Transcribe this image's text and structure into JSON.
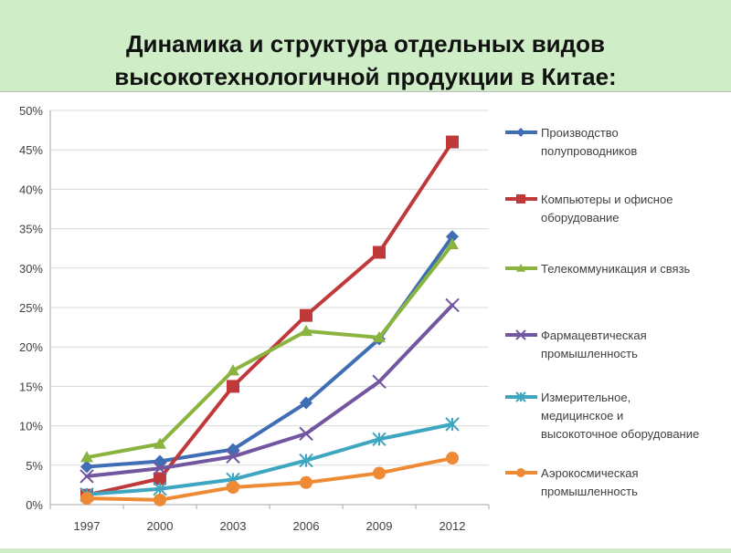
{
  "title_lines": [
    "Динамика и структура отдельных видов",
    "высокотехнологичной продукции в Китае:"
  ],
  "chart_data": {
    "type": "line",
    "x": [
      "1997",
      "2000",
      "2003",
      "2006",
      "2009",
      "2012"
    ],
    "ylim": [
      0,
      50
    ],
    "yticks": [
      0,
      5,
      10,
      15,
      20,
      25,
      30,
      35,
      40,
      45,
      50
    ],
    "ytick_labels": [
      "0%",
      "5%",
      "10%",
      "15%",
      "20%",
      "25%",
      "30%",
      "35%",
      "40%",
      "45%",
      "50%"
    ],
    "grid": "horizontal",
    "legend_position": "right",
    "series": [
      {
        "name_lines": [
          "Производство",
          "полупроводников"
        ],
        "color": "#3f6eb4",
        "marker": "diamond",
        "values": [
          4.8,
          5.5,
          7.0,
          12.9,
          21.0,
          34.0
        ]
      },
      {
        "name_lines": [
          "Компьютеры и офисное",
          "оборудование"
        ],
        "color": "#c0393a",
        "marker": "square",
        "values": [
          1.2,
          3.3,
          15.0,
          24.0,
          32.0,
          46.0
        ]
      },
      {
        "name_lines": [
          "Телекоммуникация и связь"
        ],
        "color": "#8ab33f",
        "marker": "triangle",
        "values": [
          6.0,
          7.7,
          17.0,
          22.0,
          21.2,
          33.0
        ]
      },
      {
        "name_lines": [
          "Фармацевтическая",
          "промышленность"
        ],
        "color": "#7256a0",
        "marker": "x",
        "values": [
          3.6,
          4.6,
          6.1,
          9.0,
          15.6,
          25.3
        ]
      },
      {
        "name_lines": [
          "Измерительное,",
          "медицинское и",
          "высокоточное оборудование"
        ],
        "color": "#3ea6c0",
        "marker": "asterisk",
        "values": [
          1.3,
          2.0,
          3.2,
          5.6,
          8.3,
          10.2
        ]
      },
      {
        "name_lines": [
          "Аэрокосмическая",
          "промышленность"
        ],
        "color": "#ee8a34",
        "marker": "circle",
        "values": [
          0.8,
          0.6,
          2.2,
          2.8,
          4.0,
          5.9
        ]
      }
    ]
  }
}
